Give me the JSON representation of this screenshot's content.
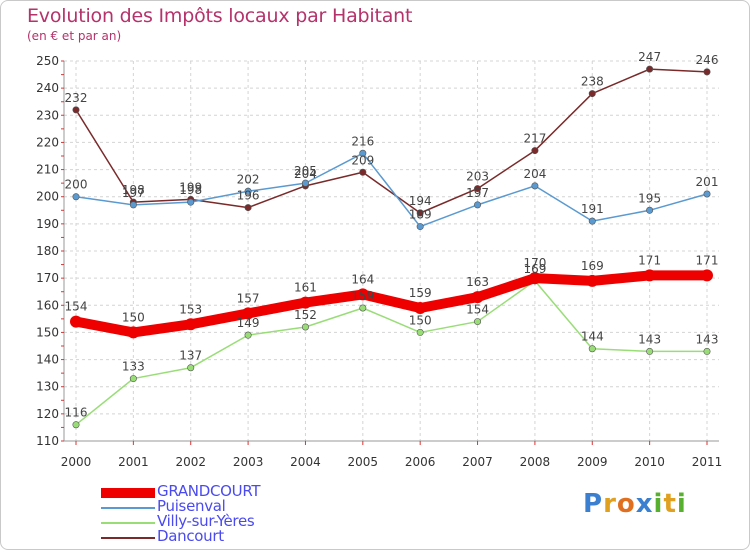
{
  "header": {
    "title": "Evolution des Impôts locaux par Habitant",
    "subtitle": "(en € et par an)"
  },
  "logo": {
    "text": "Proxiti",
    "letters": [
      {
        "ch": "P",
        "color": "#3a7fd0"
      },
      {
        "ch": "r",
        "color": "#e0a020"
      },
      {
        "ch": "o",
        "color": "#e07020"
      },
      {
        "ch": "x",
        "color": "#3a7fd0"
      },
      {
        "ch": "i",
        "color": "#58b030"
      },
      {
        "ch": "t",
        "color": "#e0a020"
      },
      {
        "ch": "i",
        "color": "#58b030"
      }
    ]
  },
  "chart_data": {
    "type": "line",
    "title": "Evolution des Impôts locaux par Habitant",
    "subtitle": "(en € et par an)",
    "x": [
      "2000",
      "2001",
      "2002",
      "2003",
      "2004",
      "2005",
      "2006",
      "2007",
      "2008",
      "2009",
      "2010",
      "2011"
    ],
    "ylim": [
      110,
      250
    ],
    "yticks": [
      110,
      120,
      130,
      140,
      150,
      160,
      170,
      180,
      190,
      200,
      210,
      220,
      230,
      240,
      250
    ],
    "grid": true,
    "legend_position": "bottom-left",
    "series": [
      {
        "name": "GRANDCOURT",
        "color": "#ee0000",
        "values": [
          154,
          150,
          153,
          157,
          161,
          164,
          159,
          163,
          170,
          169,
          171,
          171
        ]
      },
      {
        "name": "Puisenval",
        "color": "#5a9ad0",
        "values": [
          200,
          197,
          198,
          202,
          205,
          216,
          189,
          197,
          204,
          191,
          195,
          201
        ]
      },
      {
        "name": "Villy-sur-Yères",
        "color": "#99dd77",
        "values": [
          116,
          133,
          137,
          149,
          152,
          159,
          150,
          154,
          169,
          144,
          143,
          143
        ]
      },
      {
        "name": "Dancourt",
        "color": "#7a2a2a",
        "values": [
          232,
          198,
          199,
          196,
          204,
          209,
          194,
          203,
          217,
          238,
          247,
          246
        ]
      }
    ]
  }
}
